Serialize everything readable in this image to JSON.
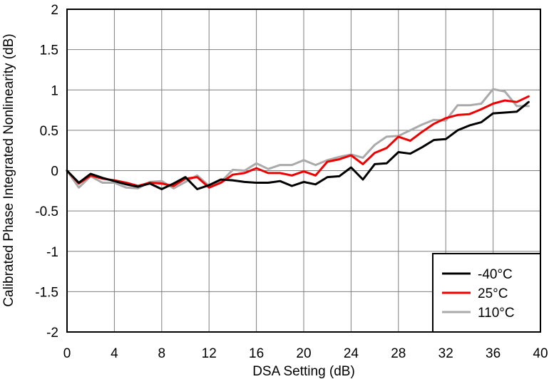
{
  "chart_data": {
    "type": "line",
    "title": "",
    "xlabel": "DSA Setting (dB)",
    "ylabel": "Calibrated Phase Integrated Nonlinearity (dB)",
    "xlim": [
      0,
      40
    ],
    "ylim": [
      -2,
      2
    ],
    "xticks": [
      0,
      4,
      8,
      12,
      16,
      20,
      24,
      28,
      32,
      36,
      40
    ],
    "yticks": [
      -2,
      -1.5,
      -1,
      -0.5,
      0,
      0.5,
      1,
      1.5,
      2
    ],
    "xtick_labels": [
      "0",
      "4",
      "8",
      "12",
      "16",
      "20",
      "24",
      "28",
      "32",
      "36",
      "40"
    ],
    "ytick_labels": [
      "-2",
      "-1.5",
      "-1",
      "-0.5",
      "0",
      "0.5",
      "1",
      "1.5",
      "2"
    ],
    "grid": true,
    "legend_position": "bottom-right",
    "x": [
      0,
      1,
      2,
      3,
      4,
      5,
      6,
      7,
      8,
      9,
      10,
      11,
      12,
      13,
      14,
      15,
      16,
      17,
      18,
      19,
      20,
      21,
      22,
      23,
      24,
      25,
      26,
      27,
      28,
      29,
      30,
      31,
      32,
      33,
      34,
      35,
      36,
      37,
      38,
      39
    ],
    "series": [
      {
        "name": "-40°C",
        "color": "#000000",
        "values": [
          0,
          -0.15,
          -0.04,
          -0.09,
          -0.13,
          -0.17,
          -0.2,
          -0.16,
          -0.23,
          -0.16,
          -0.08,
          -0.23,
          -0.18,
          -0.11,
          -0.12,
          -0.14,
          -0.15,
          -0.15,
          -0.13,
          -0.19,
          -0.14,
          -0.17,
          -0.08,
          -0.07,
          0.04,
          -0.11,
          0.08,
          0.09,
          0.23,
          0.21,
          0.29,
          0.38,
          0.39,
          0.5,
          0.56,
          0.6,
          0.71,
          0.72,
          0.73,
          0.85
        ]
      },
      {
        "name": "25°C",
        "color": "#ee0000",
        "values": [
          0,
          -0.16,
          -0.06,
          -0.1,
          -0.12,
          -0.15,
          -0.19,
          -0.15,
          -0.16,
          -0.19,
          -0.1,
          -0.08,
          -0.21,
          -0.15,
          -0.05,
          -0.03,
          0.03,
          -0.03,
          -0.03,
          -0.06,
          -0.01,
          -0.06,
          0.11,
          0.14,
          0.19,
          0.08,
          0.22,
          0.28,
          0.42,
          0.37,
          0.48,
          0.58,
          0.65,
          0.69,
          0.7,
          0.76,
          0.83,
          0.87,
          0.85,
          0.92
        ]
      },
      {
        "name": "110°C",
        "color": "#aaaaaa",
        "values": [
          0,
          -0.21,
          -0.07,
          -0.15,
          -0.15,
          -0.21,
          -0.22,
          -0.14,
          -0.13,
          -0.22,
          -0.14,
          -0.06,
          -0.19,
          -0.14,
          0.01,
          0.0,
          0.09,
          0.02,
          0.07,
          0.07,
          0.13,
          0.07,
          0.13,
          0.17,
          0.2,
          0.16,
          0.32,
          0.42,
          0.43,
          0.5,
          0.57,
          0.63,
          0.62,
          0.81,
          0.81,
          0.83,
          1.01,
          0.98,
          0.8,
          0.8
        ]
      }
    ]
  }
}
